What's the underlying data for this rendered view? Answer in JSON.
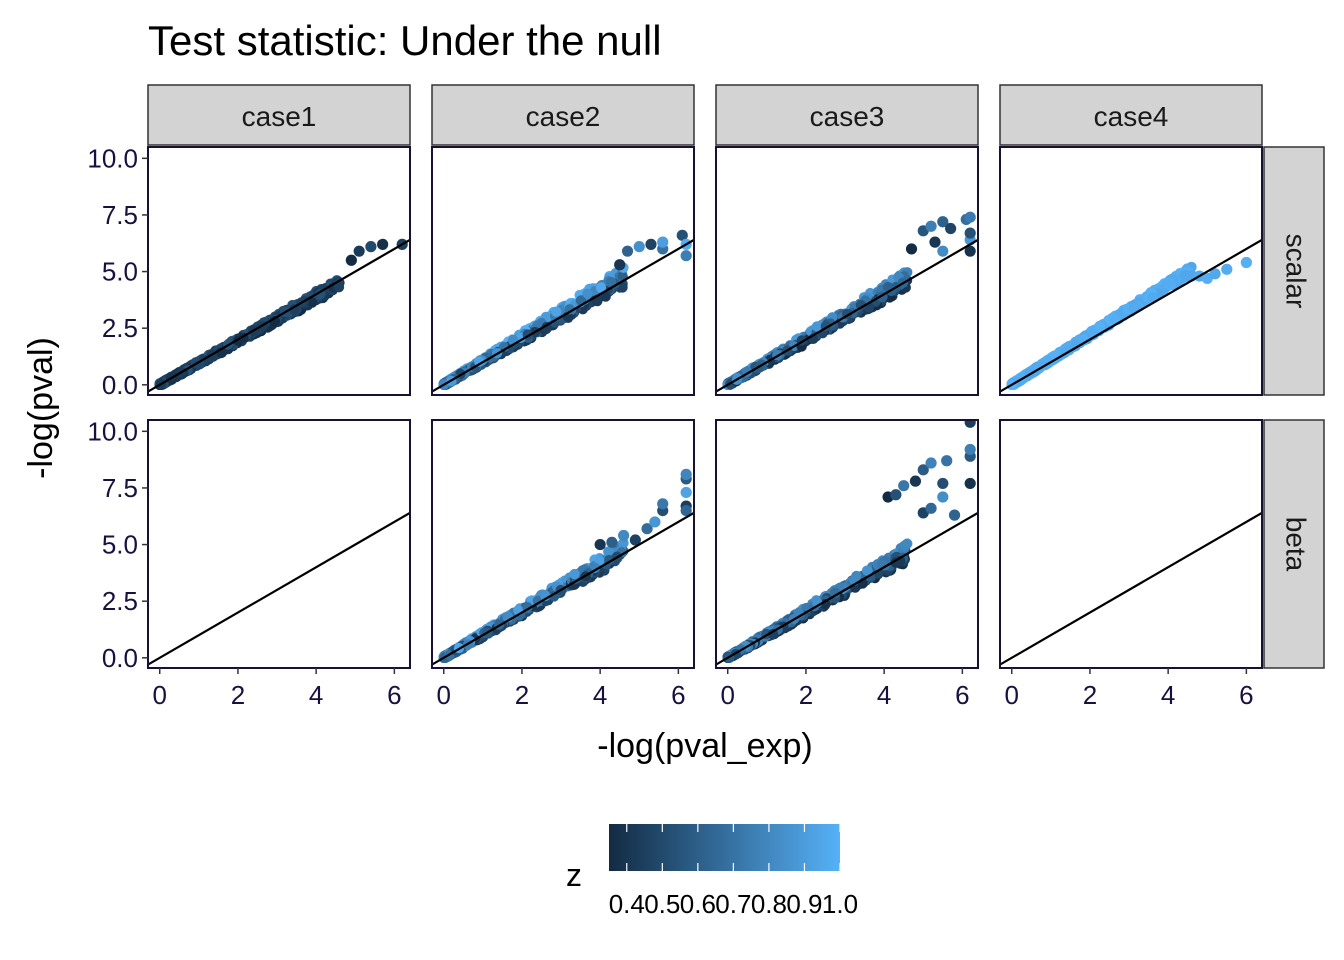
{
  "chart_data": {
    "type": "scatter",
    "title": "Test statistic: Under the null",
    "xlabel": "-log(pval_exp)",
    "ylabel": "-log(pval)",
    "columns": [
      "case1",
      "case2",
      "case3",
      "case4"
    ],
    "rows": [
      "scalar",
      "beta"
    ],
    "xlim": [
      -0.3,
      6.4
    ],
    "ylim": [
      -0.45,
      10.5
    ],
    "x_ticks": [
      0,
      2,
      4,
      6
    ],
    "x_tick_labels": [
      "0",
      "2",
      "4",
      "6"
    ],
    "y_ticks": [
      0,
      2.5,
      5,
      7.5,
      10
    ],
    "y_tick_labels": [
      "0.0",
      "2.5",
      "5.0",
      "7.5",
      "10.0"
    ],
    "reference_line": {
      "slope": 1,
      "intercept": 0
    },
    "legend": {
      "title": "z",
      "range": [
        0.35,
        1.0
      ],
      "low_color": "#132B43",
      "high_color": "#56B1F7",
      "ticks": [
        0.4,
        0.5,
        0.6,
        0.7,
        0.8,
        0.9,
        1.0
      ],
      "tick_labels": [
        "0.4",
        "0.5",
        "0.6",
        "0.7",
        "0.8",
        "0.9",
        "1.0"
      ],
      "position": "bottom"
    },
    "panels": [
      {
        "column": "case1",
        "row": "scalar",
        "empty": false,
        "z_range": [
          0.35,
          0.55
        ],
        "tail": [
          [
            4.9,
            5.5
          ],
          [
            5.1,
            5.9
          ],
          [
            5.4,
            6.1
          ],
          [
            5.7,
            6.2
          ],
          [
            6.2,
            6.2
          ]
        ]
      },
      {
        "column": "case2",
        "row": "scalar",
        "empty": false,
        "z_range": [
          0.4,
          1.0
        ],
        "tail": [
          [
            4.5,
            5.3
          ],
          [
            4.7,
            5.9
          ],
          [
            5.0,
            6.1
          ],
          [
            5.3,
            6.2
          ],
          [
            5.6,
            6.0
          ],
          [
            5.6,
            6.3
          ],
          [
            6.1,
            6.6
          ],
          [
            6.2,
            5.7
          ],
          [
            6.2,
            6.2
          ]
        ]
      },
      {
        "column": "case3",
        "row": "scalar",
        "empty": false,
        "z_range": [
          0.35,
          0.9
        ],
        "tail": [
          [
            4.7,
            6.0
          ],
          [
            5.0,
            6.8
          ],
          [
            5.2,
            7.0
          ],
          [
            5.3,
            6.3
          ],
          [
            5.5,
            7.2
          ],
          [
            5.5,
            5.9
          ],
          [
            5.7,
            6.9
          ],
          [
            6.1,
            7.3
          ],
          [
            6.2,
            6.4
          ],
          [
            6.2,
            6.7
          ],
          [
            6.2,
            7.4
          ],
          [
            6.2,
            5.9
          ]
        ]
      },
      {
        "column": "case4",
        "row": "scalar",
        "empty": false,
        "z_range": [
          0.95,
          1.0
        ],
        "tail": [
          [
            4.6,
            4.8
          ],
          [
            4.8,
            4.8
          ],
          [
            5.0,
            4.7
          ],
          [
            5.2,
            4.9
          ],
          [
            5.5,
            5.1
          ],
          [
            6.0,
            5.4
          ]
        ]
      },
      {
        "column": "case1",
        "row": "beta",
        "empty": true,
        "z_range": [
          0.35,
          0.35
        ],
        "tail": []
      },
      {
        "column": "case2",
        "row": "beta",
        "empty": false,
        "z_range": [
          0.4,
          0.95
        ],
        "tail": [
          [
            4.0,
            5.0
          ],
          [
            4.3,
            5.1
          ],
          [
            4.6,
            5.4
          ],
          [
            4.9,
            5.2
          ],
          [
            5.2,
            5.7
          ],
          [
            5.4,
            6.0
          ],
          [
            5.6,
            6.5
          ],
          [
            5.6,
            6.8
          ],
          [
            6.2,
            7.3
          ],
          [
            6.2,
            7.9
          ],
          [
            6.2,
            8.1
          ],
          [
            6.2,
            6.7
          ],
          [
            6.2,
            6.5
          ]
        ]
      },
      {
        "column": "case3",
        "row": "beta",
        "empty": false,
        "z_range": [
          0.35,
          0.85
        ],
        "tail": [
          [
            4.1,
            7.1
          ],
          [
            4.3,
            7.2
          ],
          [
            4.5,
            7.6
          ],
          [
            4.8,
            7.8
          ],
          [
            5.0,
            8.3
          ],
          [
            5.2,
            8.6
          ],
          [
            5.0,
            6.4
          ],
          [
            5.2,
            6.6
          ],
          [
            5.5,
            7.1
          ],
          [
            5.5,
            7.7
          ],
          [
            5.6,
            8.7
          ],
          [
            6.2,
            7.7
          ],
          [
            6.2,
            8.9
          ],
          [
            6.2,
            9.2
          ],
          [
            6.2,
            10.4
          ],
          [
            5.8,
            6.3
          ]
        ]
      },
      {
        "column": "case4",
        "row": "beta",
        "empty": true,
        "z_range": [
          0.35,
          0.35
        ],
        "tail": []
      }
    ]
  }
}
